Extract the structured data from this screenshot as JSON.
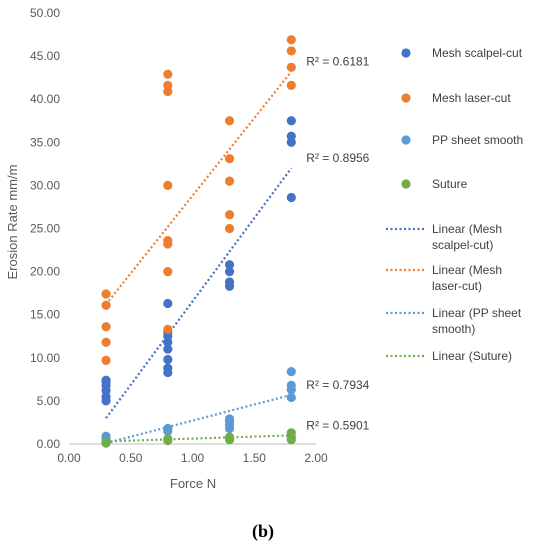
{
  "panel_label": "(b)",
  "chart_data": {
    "type": "scatter",
    "xlabel": "Force N",
    "ylabel": "Erosion Rate mm/m",
    "xlim": [
      0,
      2
    ],
    "ylim": [
      0,
      50
    ],
    "xticks": [
      "0.00",
      "0.50",
      "1.00",
      "1.50",
      "2.00"
    ],
    "yticks": [
      "0.00",
      "5.00",
      "10.00",
      "15.00",
      "20.00",
      "25.00",
      "30.00",
      "35.00",
      "40.00",
      "45.00",
      "50.00"
    ],
    "grid": false,
    "legend_position": "right",
    "series": [
      {
        "name": "Mesh scalpel-cut",
        "color": "#4472C4",
        "points": [
          [
            0.3,
            5.0
          ],
          [
            0.3,
            5.5
          ],
          [
            0.3,
            6.2
          ],
          [
            0.3,
            6.8
          ],
          [
            0.3,
            7.2
          ],
          [
            0.3,
            7.4
          ],
          [
            0.8,
            8.3
          ],
          [
            0.8,
            8.8
          ],
          [
            0.8,
            9.8
          ],
          [
            0.8,
            11.0
          ],
          [
            0.8,
            11.8
          ],
          [
            0.8,
            12.5
          ],
          [
            0.8,
            13.0
          ],
          [
            0.8,
            16.3
          ],
          [
            1.3,
            18.3
          ],
          [
            1.3,
            18.8
          ],
          [
            1.3,
            20.0
          ],
          [
            1.3,
            20.8
          ],
          [
            1.8,
            28.6
          ],
          [
            1.8,
            35.0
          ],
          [
            1.8,
            35.7
          ],
          [
            1.8,
            37.5
          ]
        ]
      },
      {
        "name": "Mesh laser-cut",
        "color": "#ED7D31",
        "points": [
          [
            0.3,
            9.7
          ],
          [
            0.3,
            11.8
          ],
          [
            0.3,
            13.6
          ],
          [
            0.3,
            16.1
          ],
          [
            0.3,
            17.4
          ],
          [
            0.8,
            13.3
          ],
          [
            0.8,
            20.0
          ],
          [
            0.8,
            23.2
          ],
          [
            0.8,
            23.6
          ],
          [
            0.8,
            30.0
          ],
          [
            0.8,
            40.9
          ],
          [
            0.8,
            41.6
          ],
          [
            0.8,
            42.9
          ],
          [
            1.3,
            25.0
          ],
          [
            1.3,
            26.6
          ],
          [
            1.3,
            30.5
          ],
          [
            1.3,
            33.1
          ],
          [
            1.3,
            37.5
          ],
          [
            1.8,
            41.6
          ],
          [
            1.8,
            43.7
          ],
          [
            1.8,
            45.6
          ],
          [
            1.8,
            46.9
          ]
        ]
      },
      {
        "name": "PP sheet smooth",
        "color": "#5B9BD5",
        "points": [
          [
            0.3,
            0.3
          ],
          [
            0.3,
            0.6
          ],
          [
            0.3,
            0.9
          ],
          [
            0.8,
            1.5
          ],
          [
            0.8,
            1.8
          ],
          [
            1.3,
            1.8
          ],
          [
            1.3,
            2.2
          ],
          [
            1.3,
            2.6
          ],
          [
            1.3,
            2.9
          ],
          [
            1.8,
            5.4
          ],
          [
            1.8,
            6.3
          ],
          [
            1.8,
            6.8
          ],
          [
            1.8,
            8.4
          ]
        ]
      },
      {
        "name": "Suture",
        "color": "#70AD47",
        "points": [
          [
            0.3,
            0.1
          ],
          [
            0.3,
            0.2
          ],
          [
            0.8,
            0.4
          ],
          [
            0.8,
            0.6
          ],
          [
            1.3,
            0.5
          ],
          [
            1.3,
            0.8
          ],
          [
            1.8,
            0.5
          ],
          [
            1.8,
            0.8
          ],
          [
            1.8,
            1.3
          ]
        ]
      }
    ],
    "trendlines": [
      {
        "name": "Linear (Mesh scalpel-cut)",
        "color": "#4472C4",
        "x": [
          0.3,
          1.8
        ],
        "y": [
          3.0,
          32.0
        ],
        "r2_label": "R² = 0.8956",
        "r2_label_anchor": [
          1.8,
          32.0
        ]
      },
      {
        "name": "Linear (Mesh laser-cut)",
        "color": "#ED7D31",
        "x": [
          0.3,
          1.8
        ],
        "y": [
          16.2,
          43.2
        ],
        "r2_label": "R² = 0.6181",
        "r2_label_anchor": [
          1.8,
          43.2
        ]
      },
      {
        "name": "Linear (PP sheet smooth)",
        "color": "#5B9BD5",
        "x": [
          0.3,
          1.8
        ],
        "y": [
          0.1,
          5.7
        ],
        "r2_label": "R² = 0.7934",
        "r2_label_anchor": [
          1.8,
          5.7
        ]
      },
      {
        "name": "Linear (Suture)",
        "color": "#70AD47",
        "x": [
          0.3,
          1.8
        ],
        "y": [
          0.3,
          1.0
        ],
        "r2_label": "R² = 0.5901",
        "r2_label_anchor": [
          1.8,
          1.0
        ]
      }
    ],
    "legend": [
      {
        "kind": "marker",
        "label": "Mesh scalpel-cut",
        "color": "#4472C4"
      },
      {
        "kind": "marker",
        "label": "Mesh laser-cut",
        "color": "#ED7D31"
      },
      {
        "kind": "marker",
        "label": "PP sheet smooth",
        "color": "#5B9BD5"
      },
      {
        "kind": "marker",
        "label": "Suture",
        "color": "#70AD47"
      },
      {
        "kind": "line",
        "lines": [
          "Linear (Mesh",
          "scalpel-cut)"
        ],
        "color": "#4472C4"
      },
      {
        "kind": "line",
        "lines": [
          "Linear (Mesh",
          "laser-cut)"
        ],
        "color": "#ED7D31"
      },
      {
        "kind": "line",
        "lines": [
          "Linear (PP sheet",
          "smooth)"
        ],
        "color": "#5B9BD5"
      },
      {
        "kind": "line",
        "lines": [
          "Linear (Suture)"
        ],
        "color": "#70AD47"
      }
    ]
  }
}
